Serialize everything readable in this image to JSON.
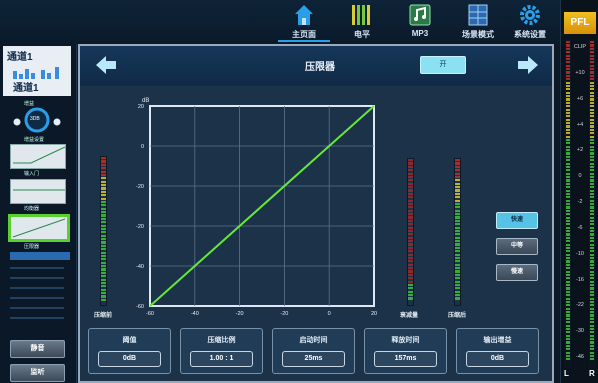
{
  "nav": {
    "items": [
      {
        "label": "主页面",
        "icon": "home-icon",
        "active": true
      },
      {
        "label": "电平",
        "icon": "fader-icon",
        "active": false
      },
      {
        "label": "MP3",
        "icon": "music-icon",
        "active": false
      },
      {
        "label": "场景模式",
        "icon": "scene-icon",
        "active": false
      },
      {
        "label": "系统设置",
        "icon": "settings-gear-icon",
        "active": false
      }
    ]
  },
  "left": {
    "channel_small": "通道1",
    "channel_big": "通道1",
    "gain_label": "增益",
    "knob_value": "3DB",
    "knob_sub": "增益设置",
    "tag_eq": "输入门",
    "tag_comp": "均衡器",
    "tag_limiter": "压限器",
    "btn_mute": "静音",
    "btn_solo": "监听"
  },
  "main": {
    "title": "压限器",
    "on_label": "开",
    "side_buttons": [
      "快速",
      "中等",
      "慢速"
    ],
    "meter_labels": {
      "left": "压缩前",
      "mid": "衰减量",
      "right": "压缩后"
    },
    "chart_data": {
      "type": "line",
      "ylabel": "dB",
      "x_ticks": [
        "-60",
        "-40",
        "-20",
        "-20",
        "0",
        "20"
      ],
      "y_ticks": [
        "20",
        "0",
        "-20",
        "-20",
        "-40",
        "-60"
      ],
      "xlim": [
        -60,
        20
      ],
      "ylim": [
        -60,
        20
      ],
      "series": [
        {
          "x": [
            -60,
            20
          ],
          "y": [
            -60,
            20
          ]
        }
      ],
      "line_color": "#66e83a"
    },
    "params": [
      {
        "label": "阈值",
        "value": "0dB"
      },
      {
        "label": "压缩比例",
        "value": "1.00 : 1"
      },
      {
        "label": "启动时间",
        "value": "25ms"
      },
      {
        "label": "释放时间",
        "value": "157ms"
      },
      {
        "label": "输出增益",
        "value": "0dB"
      }
    ]
  },
  "pfl": {
    "title": "PFL",
    "scale": [
      "CLIP",
      "+10",
      "+6",
      "+4",
      "+2",
      "0",
      "-2",
      "-6",
      "-10",
      "-16",
      "-22",
      "-30",
      "-46"
    ],
    "left_label": "L",
    "right_label": "R"
  },
  "colors": {
    "accent": "#2a9ee8",
    "meter_green": "#3ec040",
    "meter_yellow": "#d8c830",
    "meter_red": "#b83030"
  }
}
